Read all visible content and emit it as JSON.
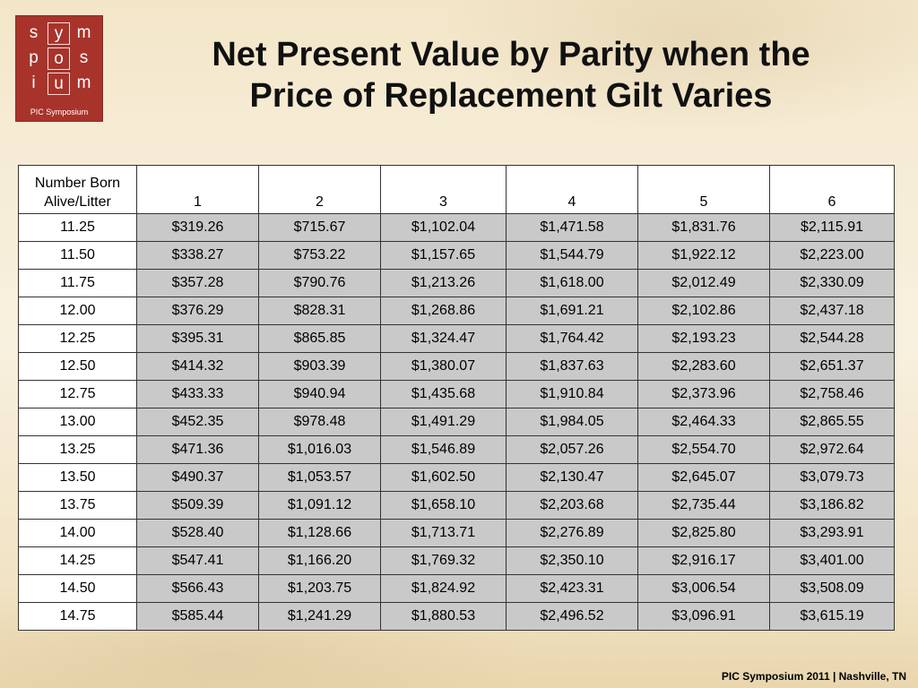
{
  "logo": {
    "letters": [
      "s",
      "y",
      "m",
      "p",
      "o",
      "s",
      "i",
      "u",
      "m"
    ],
    "caption": "PIC Symposium"
  },
  "title": {
    "line1": "Net Present Value by Parity when the",
    "line2": "Price of Replacement Gilt Varies"
  },
  "table": {
    "corner_header": [
      "Number Born",
      "Alive/Litter"
    ],
    "parity_headers": [
      "1",
      "2",
      "3",
      "4",
      "5",
      "6"
    ],
    "rows": [
      {
        "label": "11.25",
        "values": [
          "$319.26",
          "$715.67",
          "$1,102.04",
          "$1,471.58",
          "$1,831.76",
          "$2,115.91"
        ]
      },
      {
        "label": "11.50",
        "values": [
          "$338.27",
          "$753.22",
          "$1,157.65",
          "$1,544.79",
          "$1,922.12",
          "$2,223.00"
        ]
      },
      {
        "label": "11.75",
        "values": [
          "$357.28",
          "$790.76",
          "$1,213.26",
          "$1,618.00",
          "$2,012.49",
          "$2,330.09"
        ]
      },
      {
        "label": "12.00",
        "values": [
          "$376.29",
          "$828.31",
          "$1,268.86",
          "$1,691.21",
          "$2,102.86",
          "$2,437.18"
        ]
      },
      {
        "label": "12.25",
        "values": [
          "$395.31",
          "$865.85",
          "$1,324.47",
          "$1,764.42",
          "$2,193.23",
          "$2,544.28"
        ]
      },
      {
        "label": "12.50",
        "values": [
          "$414.32",
          "$903.39",
          "$1,380.07",
          "$1,837.63",
          "$2,283.60",
          "$2,651.37"
        ]
      },
      {
        "label": "12.75",
        "values": [
          "$433.33",
          "$940.94",
          "$1,435.68",
          "$1,910.84",
          "$2,373.96",
          "$2,758.46"
        ]
      },
      {
        "label": "13.00",
        "values": [
          "$452.35",
          "$978.48",
          "$1,491.29",
          "$1,984.05",
          "$2,464.33",
          "$2,865.55"
        ]
      },
      {
        "label": "13.25",
        "values": [
          "$471.36",
          "$1,016.03",
          "$1,546.89",
          "$2,057.26",
          "$2,554.70",
          "$2,972.64"
        ]
      },
      {
        "label": "13.50",
        "values": [
          "$490.37",
          "$1,053.57",
          "$1,602.50",
          "$2,130.47",
          "$2,645.07",
          "$3,079.73"
        ]
      },
      {
        "label": "13.75",
        "values": [
          "$509.39",
          "$1,091.12",
          "$1,658.10",
          "$2,203.68",
          "$2,735.44",
          "$3,186.82"
        ]
      },
      {
        "label": "14.00",
        "values": [
          "$528.40",
          "$1,128.66",
          "$1,713.71",
          "$2,276.89",
          "$2,825.80",
          "$3,293.91"
        ]
      },
      {
        "label": "14.25",
        "values": [
          "$547.41",
          "$1,166.20",
          "$1,769.32",
          "$2,350.10",
          "$2,916.17",
          "$3,401.00"
        ]
      },
      {
        "label": "14.50",
        "values": [
          "$566.43",
          "$1,203.75",
          "$1,824.92",
          "$2,423.31",
          "$3,006.54",
          "$3,508.09"
        ]
      },
      {
        "label": "14.75",
        "values": [
          "$585.44",
          "$1,241.29",
          "$1,880.53",
          "$2,496.52",
          "$3,096.91",
          "$3,615.19"
        ]
      }
    ]
  },
  "footer": {
    "text": "PIC Symposium 2011 | Nashville, TN"
  },
  "colors": {
    "logo_background": "#a8332b",
    "value_cell_background": "#c9c9c9",
    "row_header_background": "#ffffff"
  }
}
